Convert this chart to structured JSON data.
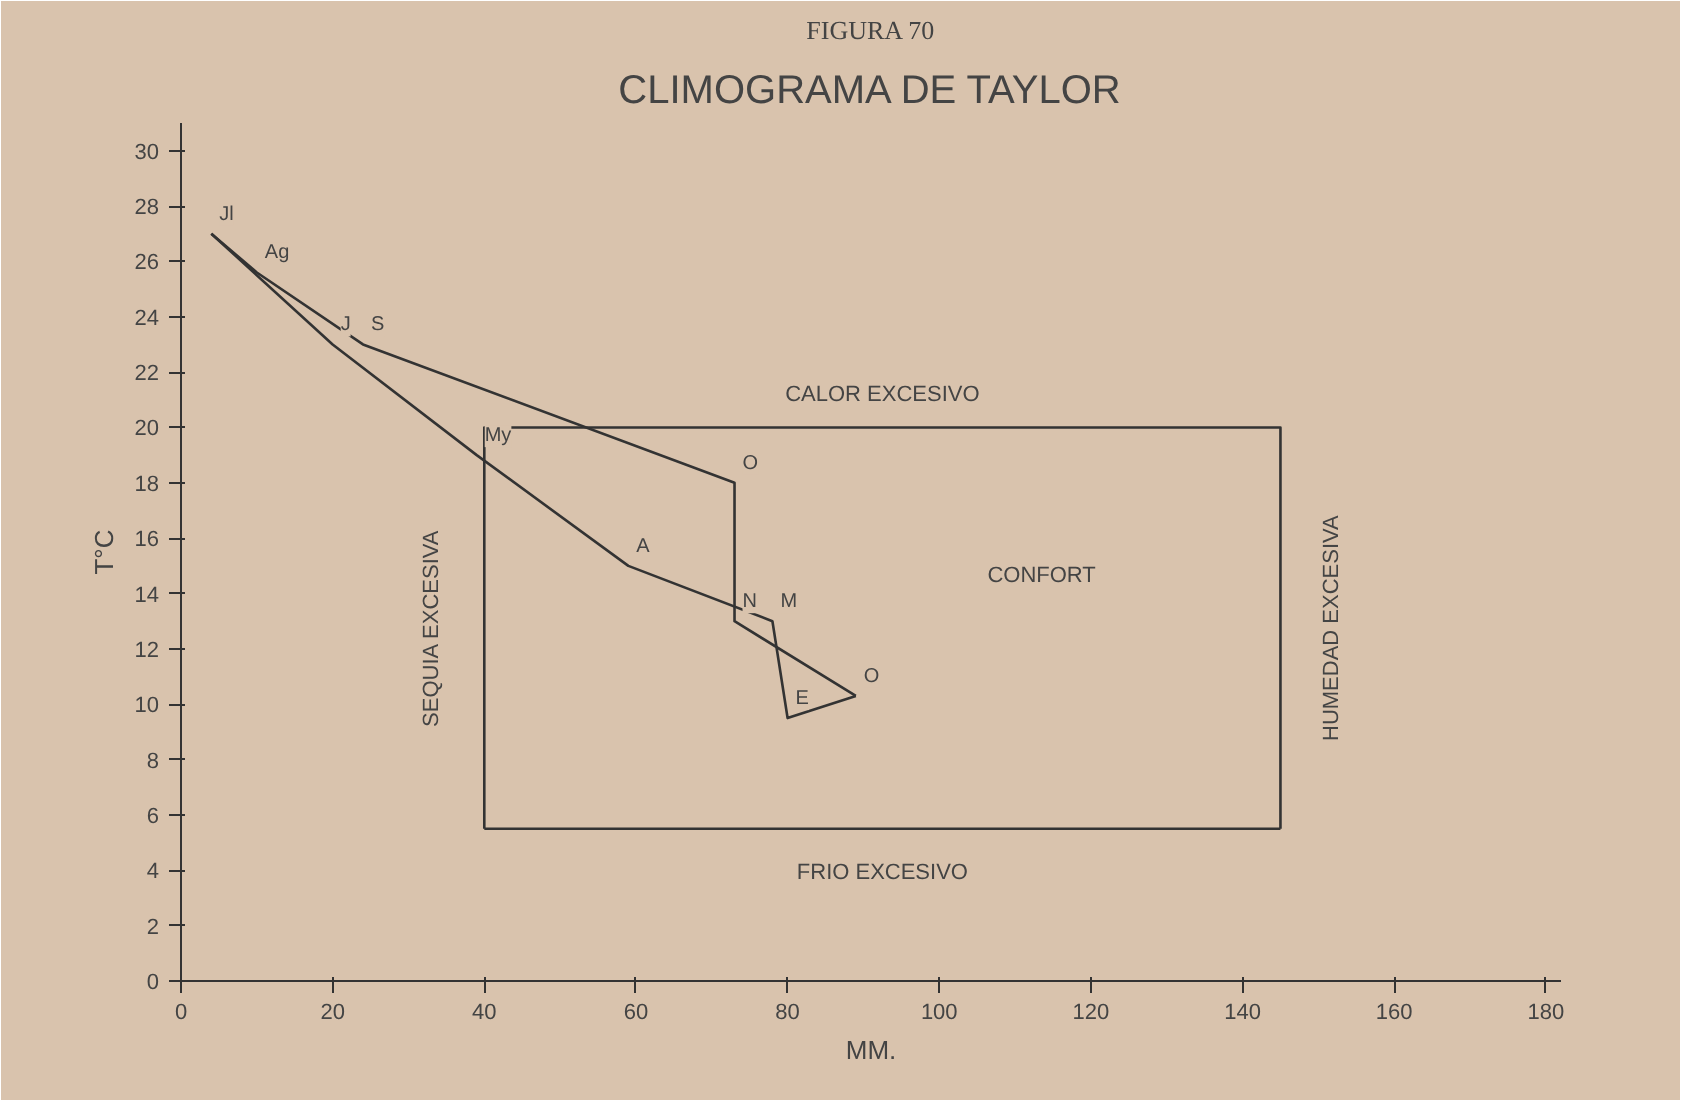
{
  "chart_data": {
    "type": "line",
    "title": "CLIMOGRAMA DE TAYLOR",
    "subtitle": "FIGURA 70",
    "xlabel": "MM.",
    "ylabel": "T°C",
    "series": [
      {
        "color": "#333333",
        "x": [
          4,
          10,
          24,
          73,
          73,
          89
        ],
        "values": [
          27,
          25.6,
          23,
          18,
          13,
          10.3
        ]
      },
      {
        "color": "#333333",
        "x": [
          4,
          20,
          39,
          59,
          78,
          80,
          89
        ],
        "values": [
          27,
          23,
          19,
          15,
          13,
          9.5,
          10.3
        ]
      },
      {
        "color": "#333333",
        "x": [
          40,
          40,
          145,
          145
        ],
        "values": [
          5.5,
          20,
          20,
          5.5
        ]
      },
      {
        "color": "#333333",
        "x": [
          40,
          145
        ],
        "values": [
          5.5,
          5.5
        ]
      }
    ],
    "annotations": [
      {
        "text": "E",
        "x": 80,
        "y": 9.5
      },
      {
        "text": "M",
        "x": 78,
        "y": 13
      },
      {
        "text": "A",
        "x": 59,
        "y": 15
      },
      {
        "text": "My",
        "x": 39,
        "y": 19
      },
      {
        "text": "J",
        "x": 20,
        "y": 23
      },
      {
        "text": "Jl",
        "x": 4,
        "y": 27
      },
      {
        "text": "Ag",
        "x": 10,
        "y": 25.6
      },
      {
        "text": "S",
        "x": 24,
        "y": 23
      },
      {
        "text": "O",
        "x": 73,
        "y": 18
      },
      {
        "text": "N",
        "x": 73,
        "y": 13
      },
      {
        "text": "O",
        "x": 89,
        "y": 10.3
      },
      "CALOR EXCESIVO",
      "CONFORT",
      "FRIO EXCESIVO",
      "SEQUIA EXCESIVA",
      "HUMEDAD EXCESIVA"
    ],
    "xlim": [
      0,
      182
    ],
    "ylim": [
      0,
      31
    ],
    "xticks": [
      0,
      20,
      40,
      60,
      80,
      100,
      120,
      140,
      160,
      180
    ],
    "yticks": [
      0,
      2,
      4,
      6,
      8,
      10,
      12,
      14,
      16,
      18,
      20,
      22,
      24,
      26,
      28,
      30
    ],
    "grid": false,
    "marker": "none",
    "line_style": "solid"
  }
}
